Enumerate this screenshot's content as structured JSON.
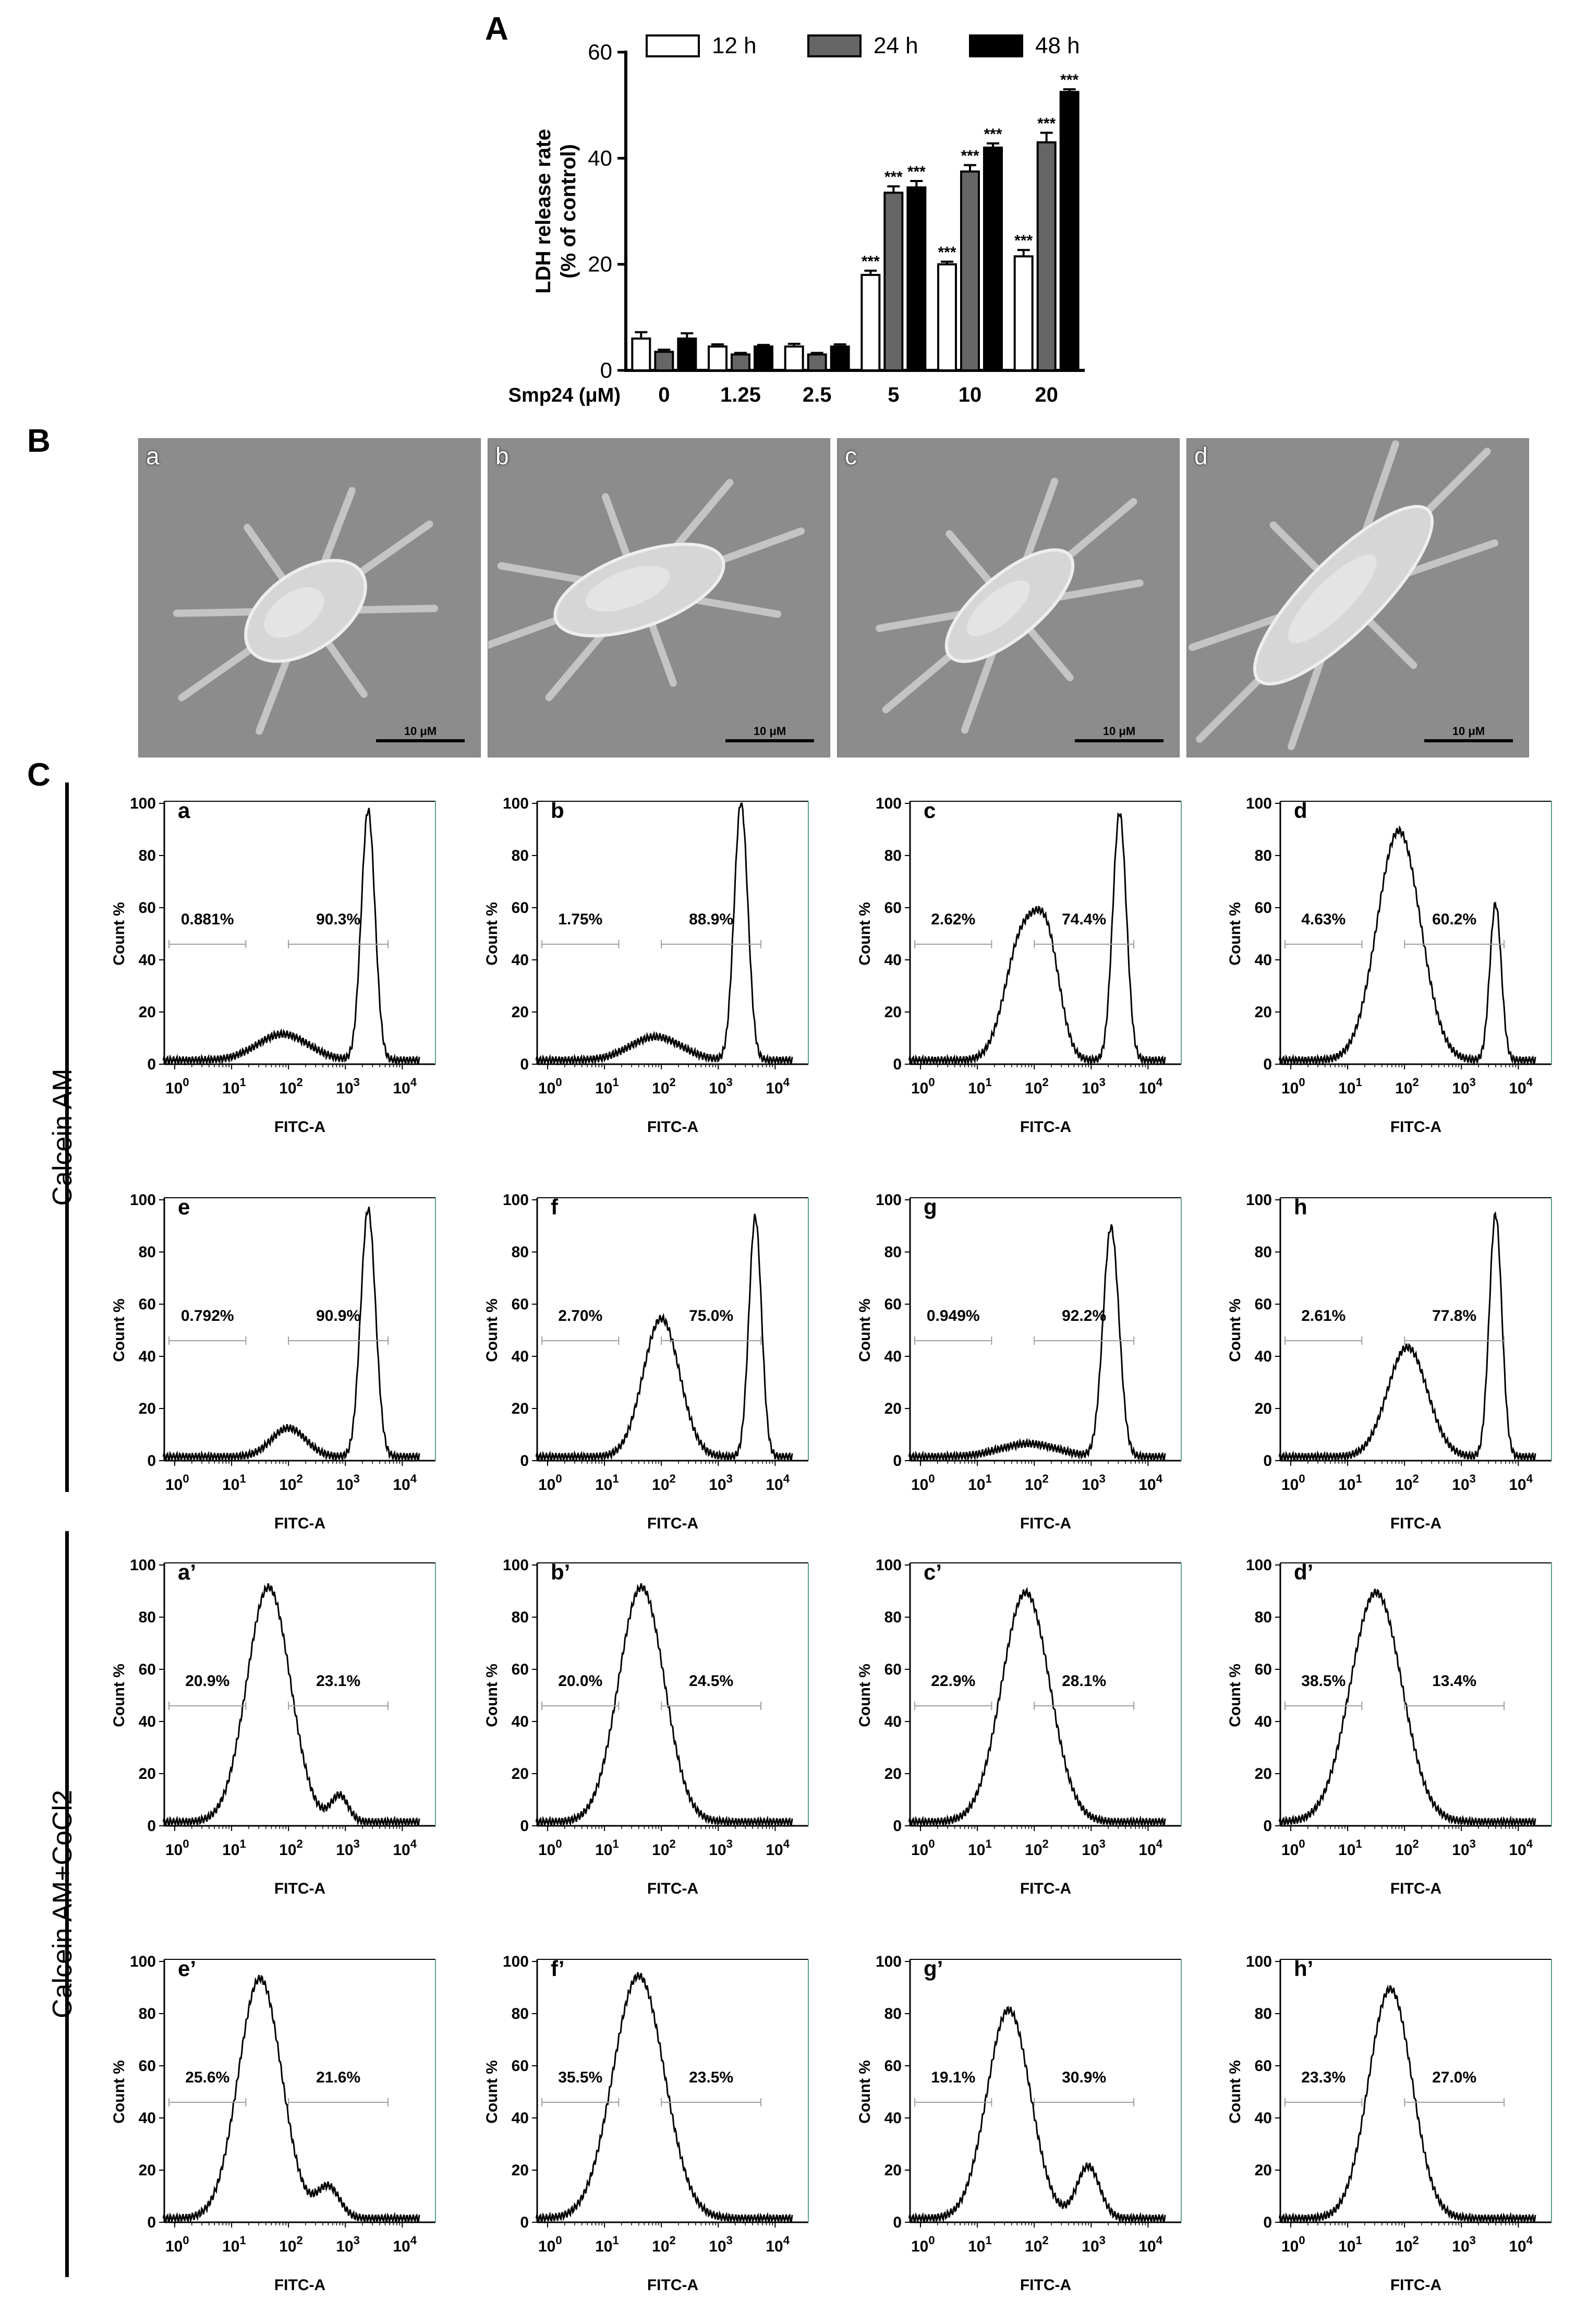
{
  "panels": {
    "A": "A",
    "B": "B",
    "C": "C"
  },
  "chart_data": [
    {
      "type": "bar",
      "title": "",
      "ylabel": "LDH release rate\n(% of control)",
      "xlabel": "Smp24 (μM)",
      "ylim": [
        0,
        60
      ],
      "yticks": [
        0,
        20,
        40,
        60
      ],
      "categories": [
        "0",
        "1.25",
        "2.5",
        "5",
        "10",
        "20"
      ],
      "series": [
        {
          "name": "12 h",
          "color": "#ffffff",
          "values": [
            6,
            4.5,
            4.5,
            18,
            20,
            21.5
          ],
          "errors": [
            1.2,
            0.4,
            0.5,
            0.8,
            0.5,
            1.2
          ],
          "sig": [
            "",
            "",
            "",
            "***",
            "***",
            "***"
          ]
        },
        {
          "name": "24 h",
          "color": "#666666",
          "values": [
            3.5,
            3,
            3,
            33.5,
            37.5,
            43
          ],
          "errors": [
            0.4,
            0.3,
            0.3,
            1.2,
            1.2,
            1.8
          ],
          "sig": [
            "",
            "",
            "",
            "***",
            "***",
            "***"
          ]
        },
        {
          "name": "48 h",
          "color": "#000000",
          "values": [
            6,
            4.5,
            4.5,
            34.5,
            42,
            52.5
          ],
          "errors": [
            1.0,
            0.3,
            0.4,
            1.2,
            0.8,
            0.5
          ],
          "sig": [
            "",
            "",
            "",
            "***",
            "***",
            "***"
          ]
        }
      ],
      "legend": "top"
    },
    {
      "type": "line",
      "group": "Calcein AM",
      "xlabel": "FITC-A",
      "ylabel": "Count %",
      "ylim": [
        0,
        100
      ],
      "yticks": [
        0,
        20,
        40,
        60,
        80,
        100
      ],
      "xscale": "log",
      "xticks": [
        "10",
        "10",
        "10",
        "10",
        "10"
      ],
      "xtick_exponents": [
        "0",
        "1",
        "2",
        "3",
        "4"
      ],
      "plots": [
        {
          "label": "a",
          "gates": [
            "0.881%",
            "90.3%"
          ],
          "peaks": [
            [
              1.9,
              10,
              0.45
            ],
            [
              3.4,
              96,
              0.12
            ]
          ]
        },
        {
          "label": "b",
          "gates": [
            "1.75%",
            "88.9%"
          ],
          "peaks": [
            [
              1.9,
              9,
              0.45
            ],
            [
              3.4,
              99,
              0.12
            ]
          ]
        },
        {
          "label": "c",
          "gates": [
            "2.62%",
            "74.4%"
          ],
          "peaks": [
            [
              1.8,
              48,
              0.3
            ],
            [
              2.25,
              36,
              0.22
            ],
            [
              3.5,
              95,
              0.12
            ]
          ]
        },
        {
          "label": "d",
          "gates": [
            "4.63%",
            "60.2%"
          ],
          "peaks": [
            [
              1.9,
              88,
              0.38
            ],
            [
              3.6,
              60,
              0.1
            ]
          ]
        },
        {
          "label": "e",
          "gates": [
            "0.792%",
            "90.9%"
          ],
          "peaks": [
            [
              2.0,
              11,
              0.3
            ],
            [
              3.4,
              95,
              0.13
            ]
          ]
        },
        {
          "label": "f",
          "gates": [
            "2.70%",
            "75.0%"
          ],
          "peaks": [
            [
              2.0,
              53,
              0.32
            ],
            [
              3.65,
              92,
              0.11
            ]
          ]
        },
        {
          "label": "g",
          "gates": [
            "0.949%",
            "92.2%"
          ],
          "peaks": [
            [
              1.9,
              5,
              0.5
            ],
            [
              3.35,
              88,
              0.14
            ]
          ]
        },
        {
          "label": "h",
          "gates": [
            "2.61%",
            "77.8%"
          ],
          "peaks": [
            [
              2.05,
              42,
              0.35
            ],
            [
              3.6,
              93,
              0.11
            ]
          ]
        }
      ]
    },
    {
      "type": "line",
      "group": "Calcein AM+CoCl2",
      "xlabel": "FITC-A",
      "ylabel": "Count %",
      "ylim": [
        0,
        100
      ],
      "yticks": [
        0,
        20,
        40,
        60,
        80,
        100
      ],
      "xscale": "log",
      "xticks": [
        "10",
        "10",
        "10",
        "10",
        "10"
      ],
      "xtick_exponents": [
        "0",
        "1",
        "2",
        "3",
        "4"
      ],
      "plots": [
        {
          "label": "a’",
          "gates": [
            "20.9%",
            "23.1%"
          ],
          "peaks": [
            [
              1.65,
              90,
              0.38
            ],
            [
              2.9,
              10,
              0.15
            ]
          ]
        },
        {
          "label": "b’",
          "gates": [
            "20.0%",
            "24.5%"
          ],
          "peaks": [
            [
              1.65,
              90,
              0.4
            ]
          ]
        },
        {
          "label": "c’",
          "gates": [
            "22.9%",
            "28.1%"
          ],
          "peaks": [
            [
              1.85,
              88,
              0.42
            ]
          ]
        },
        {
          "label": "d’",
          "gates": [
            "38.5%",
            "13.4%"
          ],
          "peaks": [
            [
              1.5,
              88,
              0.45
            ]
          ]
        },
        {
          "label": "e’",
          "gates": [
            "25.6%",
            "21.6%"
          ],
          "peaks": [
            [
              1.5,
              92,
              0.38
            ],
            [
              2.7,
              12,
              0.2
            ]
          ]
        },
        {
          "label": "f’",
          "gates": [
            "35.5%",
            "23.5%"
          ],
          "peaks": [
            [
              1.6,
              93,
              0.45
            ]
          ]
        },
        {
          "label": "g’",
          "gates": [
            "19.1%",
            "30.9%"
          ],
          "peaks": [
            [
              1.55,
              80,
              0.38
            ],
            [
              2.95,
              20,
              0.2
            ]
          ]
        },
        {
          "label": "h’",
          "gates": [
            "23.3%",
            "27.0%"
          ],
          "peaks": [
            [
              1.75,
              88,
              0.38
            ]
          ]
        }
      ]
    }
  ],
  "sem_images": [
    {
      "label": "a",
      "scale": "10 μM"
    },
    {
      "label": "b",
      "scale": "10 μM"
    },
    {
      "label": "c",
      "scale": "10 μM"
    },
    {
      "label": "d",
      "scale": "10 μM"
    }
  ],
  "colors": {
    "sem_bg": "#8c8c8c",
    "cell": "#d6d6d6",
    "gate": "#9aa0a0"
  }
}
